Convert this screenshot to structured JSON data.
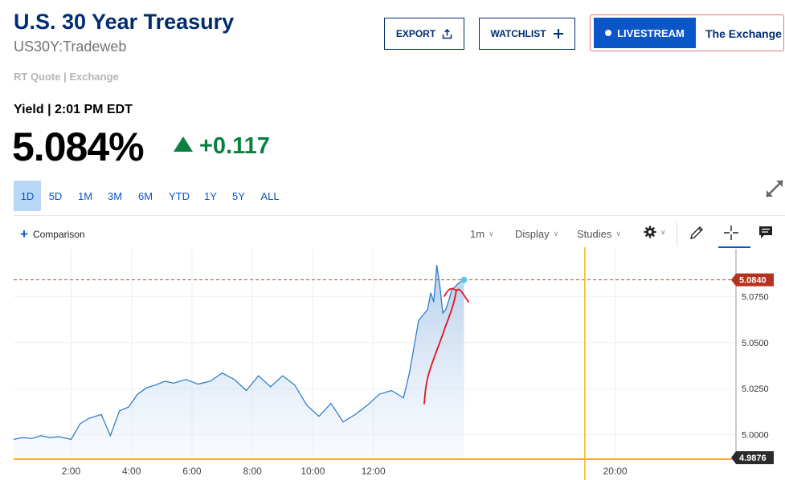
{
  "header": {
    "title": "U.S. 30 Year Treasury",
    "symbol": "US30Y:Tradeweb",
    "quote_source": "RT Quote | Exchange",
    "export_label": "EXPORT",
    "watchlist_label": "WATCHLIST",
    "livestream_label": "LIVESTREAM",
    "livestream_show": "The Exchange"
  },
  "quote": {
    "yield_label": "Yield | 2:01 PM EDT",
    "value": "5.084%",
    "change": "+0.117",
    "change_color": "#0a8043"
  },
  "ranges": {
    "active": "1D",
    "items": [
      "1D",
      "5D",
      "1M",
      "3M",
      "6M",
      "YTD",
      "1Y",
      "5Y",
      "ALL"
    ]
  },
  "toolbar": {
    "comparison_label": "Comparison",
    "interval_label": "1m",
    "display_label": "Display",
    "studies_label": "Studies",
    "icons": [
      "gear-icon",
      "pencil-icon",
      "crosshair-icon",
      "comment-icon",
      "expand-icon"
    ]
  },
  "chart_data": {
    "type": "area",
    "x_unit": "hours",
    "xlim": [
      0.1,
      24
    ],
    "ylim": [
      4.9868,
      5.1008
    ],
    "x_ticks": [
      2,
      4,
      6,
      8,
      10,
      12,
      20
    ],
    "x_tick_labels": [
      "2:00",
      "4:00",
      "6:00",
      "8:00",
      "10:00",
      "12:00",
      "20:00"
    ],
    "y_ticks": [
      5.0,
      5.025,
      5.05,
      5.075
    ],
    "y_tick_labels": [
      "5.0000",
      "5.0250",
      "5.0500",
      "5.0750"
    ],
    "current_price": 5.084,
    "current_price_label": "5.0840",
    "low_price": 4.9876,
    "low_price_label": "4.9876",
    "line_color": "#1f77c9",
    "marker_color": "#f5b800",
    "marker_x": 19.0,
    "series": [
      {
        "x": [
          0.1,
          0.4,
          0.7,
          1.0,
          1.3,
          1.6,
          2.0,
          2.3,
          2.6,
          3.0,
          3.3,
          3.6,
          3.9,
          4.2,
          4.5,
          4.8,
          5.1,
          5.4,
          5.8,
          6.2,
          6.6,
          7.0,
          7.4,
          7.8,
          8.2,
          8.6,
          9.0,
          9.4,
          9.8,
          10.2,
          10.6,
          11.0,
          11.4,
          11.8,
          12.2,
          12.6,
          13.0,
          13.2,
          13.5,
          13.8,
          13.9,
          14.0,
          14.1,
          14.2,
          14.3,
          14.4,
          14.5,
          14.6,
          14.7,
          14.8,
          14.9,
          15.0
        ],
        "y": [
          4.9975,
          4.9985,
          4.998,
          4.9995,
          4.9985,
          4.999,
          4.9975,
          5.006,
          5.009,
          5.011,
          4.9995,
          5.013,
          5.015,
          5.022,
          5.0255,
          5.027,
          5.029,
          5.028,
          5.03,
          5.0275,
          5.029,
          5.0335,
          5.03,
          5.024,
          5.032,
          5.026,
          5.032,
          5.027,
          5.016,
          5.01,
          5.017,
          5.007,
          5.011,
          5.016,
          5.022,
          5.024,
          5.02,
          5.034,
          5.062,
          5.068,
          5.077,
          5.072,
          5.092,
          5.081,
          5.066,
          5.068,
          5.073,
          5.079,
          5.08,
          5.082,
          5.083,
          5.084
        ]
      }
    ]
  }
}
